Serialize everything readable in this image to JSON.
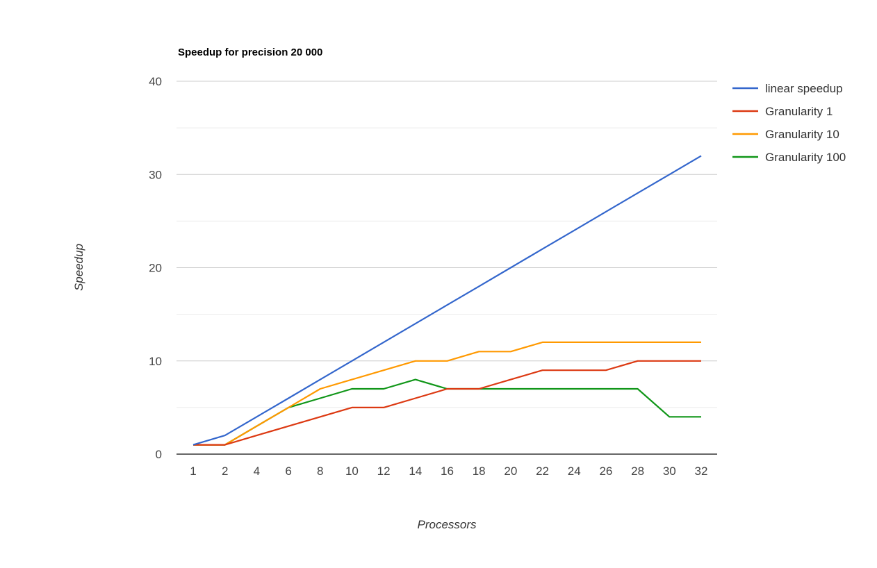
{
  "chart_data": {
    "type": "line",
    "title": "Speedup for precision 20 000",
    "xlabel": "Processors",
    "ylabel": "Speedup",
    "x": [
      "1",
      "2",
      "4",
      "6",
      "8",
      "10",
      "12",
      "14",
      "16",
      "18",
      "20",
      "22",
      "24",
      "26",
      "28",
      "30",
      "32"
    ],
    "ylim": [
      0,
      40
    ],
    "yticks": [
      0,
      10,
      20,
      30,
      40
    ],
    "grid": true,
    "legend_position": "right",
    "series": [
      {
        "name": "linear speedup",
        "color": "#3366cc",
        "values": [
          1,
          2,
          4,
          6,
          8,
          10,
          12,
          14,
          16,
          18,
          20,
          22,
          24,
          26,
          28,
          30,
          32
        ]
      },
      {
        "name": "Granularity 1",
        "color": "#dc3912",
        "values": [
          1,
          1,
          2,
          3,
          4,
          5,
          5,
          6,
          7,
          7,
          8,
          9,
          9,
          9,
          10,
          10,
          10
        ]
      },
      {
        "name": "Granularity 10",
        "color": "#ff9900",
        "values": [
          1,
          1,
          3,
          5,
          7,
          8,
          9,
          10,
          10,
          11,
          11,
          12,
          12,
          12,
          12,
          12,
          12
        ]
      },
      {
        "name": "Granularity 100",
        "color": "#109618",
        "values": [
          1,
          1,
          3,
          5,
          6,
          7,
          7,
          8,
          7,
          7,
          7,
          7,
          7,
          7,
          7,
          4,
          4
        ]
      }
    ]
  }
}
